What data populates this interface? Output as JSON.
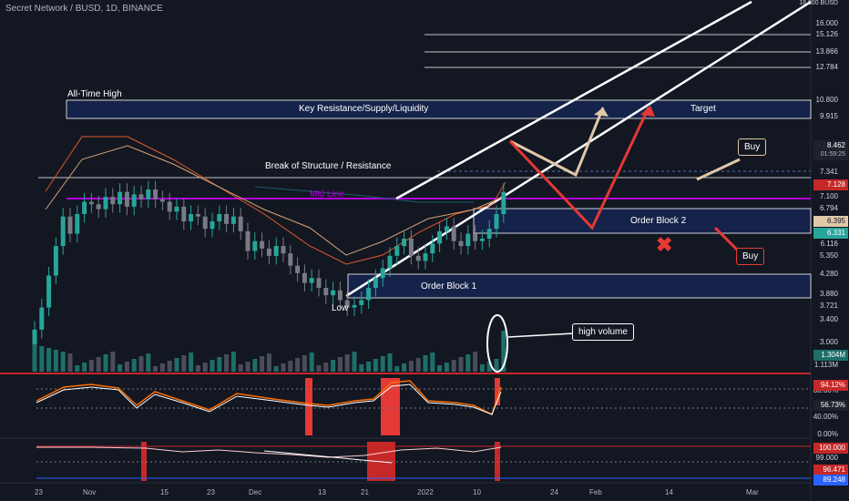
{
  "header": {
    "symbol_text": "Secret Network / BUSD, 1D, BINANCE"
  },
  "price_axis": {
    "labels": [
      "18.000 BUSD",
      "16.000",
      "15.126",
      "13.866",
      "12.784",
      "10.800",
      "9.915",
      "7.341",
      "7.100",
      "6.794",
      "6.116",
      "5.350",
      "4.280",
      "3.880",
      "3.721",
      "3.400",
      "3.000",
      "1.113M",
      "80.00%",
      "40.00%",
      "0.00%",
      "99.000"
    ],
    "tags": {
      "current_price": "8.462",
      "countdown": "01:59:25",
      "tag_7128": "7.128",
      "tag_6395": "6.395",
      "tag_6331": "6.331",
      "volume": "1.304M",
      "rsi": "94.12%",
      "stoch": "56.73%",
      "ind3_top": "100.000",
      "ind3_mid": "96.471",
      "ind3_bottom": "89.248"
    }
  },
  "time_axis": [
    "23",
    "Nov",
    "15",
    "23",
    "Dec",
    "13",
    "21",
    "2022",
    "10",
    "24",
    "Feb",
    "14",
    "Mar"
  ],
  "annotations": {
    "all_time_high": "All-Time High",
    "key_resistance": "Key Resistance/Supply/Liquidity",
    "target": "Target",
    "break_of_structure": "Break of Structure / Resistance",
    "mid_line": "Mid Line",
    "order_block_2": "Order Block 2",
    "order_block_1": "Order Block 1",
    "low": "Low",
    "buy_upper": "Buy",
    "buy_lower": "Buy",
    "high_volume": "high volume"
  },
  "chart_data": {
    "type": "candlestick",
    "title": "Secret Network / BUSD, 1D, BINANCE",
    "horizontal_levels": [
      15.126,
      13.866,
      12.784,
      10.8,
      9.915,
      7.341,
      7.1,
      6.794,
      6.116,
      5.35,
      4.28,
      3.88,
      3.721
    ],
    "current_price": 8.462,
    "closes": [
      2.9,
      3.8,
      5.1,
      6.3,
      7.5,
      6.8,
      7.6,
      8.1,
      8.0,
      7.8,
      8.3,
      8.0,
      8.5,
      7.9,
      8.4,
      8.2,
      8.6,
      8.2,
      8.1,
      7.7,
      7.9,
      7.3,
      7.6,
      7.5,
      7.0,
      7.3,
      7.6,
      7.2,
      7.5,
      6.9,
      6.1,
      6.5,
      6.2,
      5.9,
      6.3,
      6.0,
      5.5,
      5.2,
      4.8,
      5.0,
      4.6,
      4.3,
      4.5,
      4.1,
      3.8,
      3.9,
      4.1,
      4.6,
      5.0,
      5.4,
      5.9,
      6.3,
      6.6,
      5.9,
      5.7,
      6.0,
      6.4,
      6.9,
      7.1,
      6.5,
      6.3,
      6.8,
      6.5,
      6.6,
      7.0,
      7.6,
      8.5
    ],
    "colors": {
      "up": "#26a69a",
      "down": "#787b86",
      "mid_line": "#b000d6",
      "target_zone": "#1a2a55",
      "rsi_line": "#ff6d00",
      "signal_line": "#ffffff"
    }
  }
}
